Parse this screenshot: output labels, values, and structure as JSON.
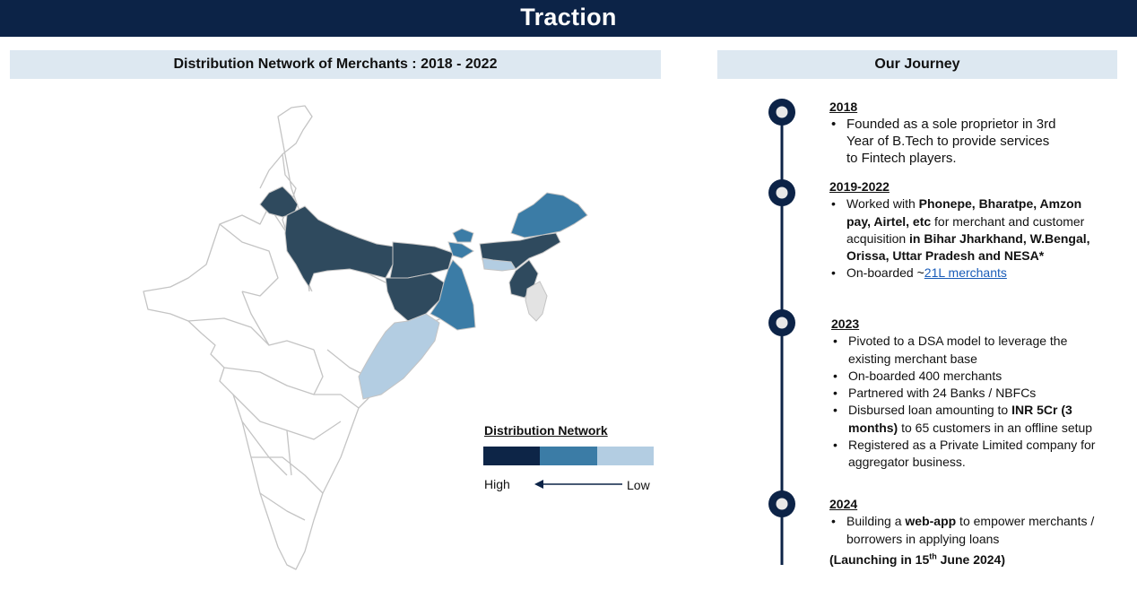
{
  "header": {
    "title": "Traction"
  },
  "left_section": {
    "title": "Distribution Network of Merchants : 2018 - 2022"
  },
  "right_section": {
    "title": "Our Journey"
  },
  "map": {
    "legend": {
      "title": "Distribution Network",
      "high_label": "High",
      "low_label": "Low",
      "colors": {
        "high": "#0d2547",
        "medium": "#3b7ca6",
        "low": "#b3cde2",
        "high_region": "#2f4a5e",
        "none": "#ffffff",
        "border": "#c4c4c4"
      }
    },
    "regions": [
      {
        "name": "Uttar Pradesh",
        "level": "high"
      },
      {
        "name": "Bihar",
        "level": "high"
      },
      {
        "name": "Jharkhand",
        "level": "high"
      },
      {
        "name": "Uttarakhand",
        "level": "high"
      },
      {
        "name": "Assam",
        "level": "high"
      },
      {
        "name": "Manipur",
        "level": "high"
      },
      {
        "name": "West Bengal",
        "level": "medium"
      },
      {
        "name": "Arunachal Pradesh",
        "level": "medium"
      },
      {
        "name": "Meghalaya",
        "level": "low"
      },
      {
        "name": "Odisha",
        "level": "low"
      },
      {
        "name": "Mizoram",
        "level": "none"
      }
    ]
  },
  "journey": {
    "milestones": [
      {
        "year": "2018",
        "points": [
          {
            "text": "Founded as a sole proprietor in 3rd Year of B.Tech to provide services to Fintech players."
          }
        ]
      },
      {
        "year": "2019-2022",
        "p1_a": "Worked with ",
        "p1_b": "Phonepe, Bharatpe, Amzon pay, Airtel, etc",
        "p1_c": " for merchant and customer acquisition ",
        "p1_d": "in Bihar Jharkhand, W.Bengal, Orissa, Uttar Pradesh and NESA*",
        "p2_a": "On-boarded ~",
        "p2_link": "21L merchants"
      },
      {
        "year": "2023",
        "p1": "Pivoted to a DSA model to leverage the existing merchant base",
        "p2": "On-boarded 400 merchants",
        "p3": "Partnered with 24 Banks / NBFCs",
        "p4_a": "Disbursed loan amounting to ",
        "p4_b": "INR 5Cr (3 months)",
        "p4_c": " to 65 customers in an offline setup",
        "p5": "Registered as a Private Limited company for aggregator business."
      },
      {
        "year": "2024",
        "p1_a": "Building a ",
        "p1_b": "web-app",
        "p1_c": " to empower merchants / borrowers in applying loans",
        "p2_a": "(Launching in 15",
        "p2_sup": "th",
        "p2_b": " June 2024)"
      }
    ],
    "timeline_color": "#0c2347"
  }
}
